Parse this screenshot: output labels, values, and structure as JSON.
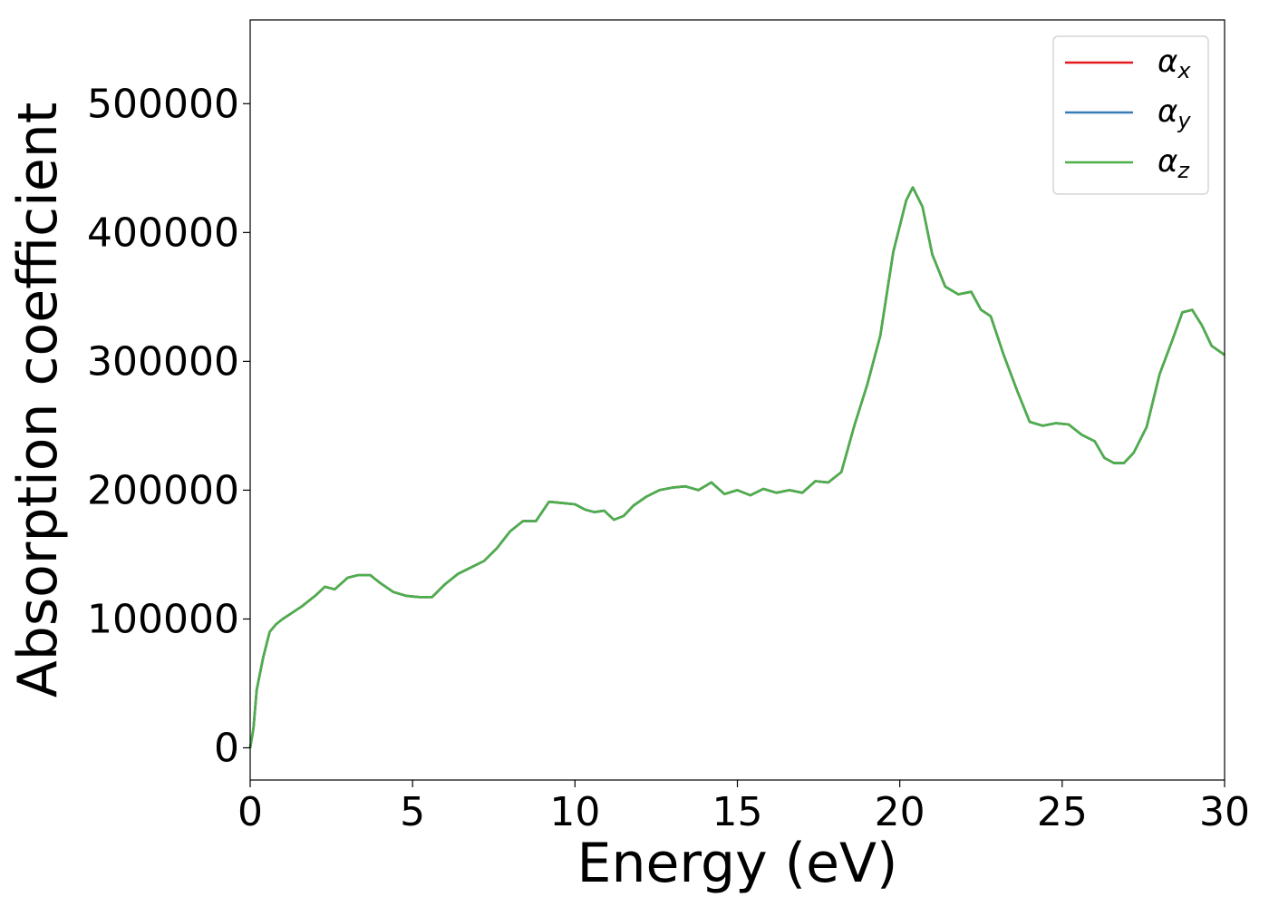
{
  "chart_data": {
    "type": "line",
    "title": "",
    "xlabel": "Energy (eV)",
    "ylabel": "Absorption coefficient",
    "xlim": [
      0,
      30
    ],
    "ylim": [
      -25000,
      565000
    ],
    "xticks": [
      0,
      5,
      10,
      15,
      20,
      25,
      30
    ],
    "xtick_labels": [
      "0",
      "5",
      "10",
      "15",
      "20",
      "25",
      "30"
    ],
    "yticks": [
      0,
      100000,
      200000,
      300000,
      400000,
      500000
    ],
    "ytick_labels": [
      "0",
      "100000",
      "200000",
      "300000",
      "400000",
      "500000"
    ],
    "grid": false,
    "legend_position": "top-right",
    "x": [
      0,
      0.1,
      0.2,
      0.4,
      0.6,
      0.8,
      1.0,
      1.3,
      1.6,
      2.0,
      2.3,
      2.6,
      3.0,
      3.3,
      3.7,
      4.0,
      4.4,
      4.8,
      5.2,
      5.6,
      6.0,
      6.4,
      6.8,
      7.2,
      7.6,
      8.0,
      8.4,
      8.8,
      9.2,
      9.6,
      10.0,
      10.3,
      10.6,
      10.9,
      11.2,
      11.5,
      11.8,
      12.2,
      12.6,
      13.0,
      13.4,
      13.8,
      14.2,
      14.6,
      15.0,
      15.4,
      15.8,
      16.2,
      16.6,
      17.0,
      17.4,
      17.8,
      18.2,
      18.6,
      19.0,
      19.4,
      19.8,
      20.2,
      20.4,
      20.7,
      21.0,
      21.4,
      21.8,
      22.2,
      22.5,
      22.8,
      23.2,
      23.6,
      24.0,
      24.4,
      24.8,
      25.2,
      25.6,
      26.0,
      26.3,
      26.6,
      26.9,
      27.2,
      27.6,
      28.0,
      28.4,
      28.7,
      29.0,
      29.3,
      29.6,
      30.0
    ],
    "series": [
      {
        "name": "α",
        "subscript": "x",
        "color": "#e41a1c",
        "values": [
          0,
          15000,
          45000,
          70000,
          90000,
          96000,
          100000,
          105000,
          110000,
          118000,
          125000,
          123000,
          132000,
          134000,
          134000,
          128000,
          121000,
          118000,
          117000,
          117000,
          127000,
          135000,
          140000,
          145000,
          155000,
          168000,
          176000,
          176000,
          191000,
          190000,
          189000,
          185000,
          183000,
          184000,
          177000,
          180000,
          188000,
          195000,
          200000,
          202000,
          203000,
          200000,
          206000,
          197000,
          200000,
          196000,
          201000,
          198000,
          200000,
          198000,
          207000,
          206000,
          214000,
          250000,
          282000,
          320000,
          385000,
          425000,
          435000,
          420000,
          383000,
          358000,
          352000,
          354000,
          340000,
          335000,
          305000,
          278000,
          253000,
          250000,
          252000,
          251000,
          243000,
          238000,
          225000,
          221000,
          221000,
          229000,
          249000,
          290000,
          317000,
          338000,
          340000,
          328000,
          312000,
          305000
        ]
      },
      {
        "name": "α",
        "subscript": "y",
        "color": "#377eb8",
        "values": [
          0,
          15000,
          45000,
          70000,
          90000,
          96000,
          100000,
          105000,
          110000,
          118000,
          125000,
          123000,
          132000,
          134000,
          134000,
          128000,
          121000,
          118000,
          117000,
          117000,
          127000,
          135000,
          140000,
          145000,
          155000,
          168000,
          176000,
          176000,
          191000,
          190000,
          189000,
          185000,
          183000,
          184000,
          177000,
          180000,
          188000,
          195000,
          200000,
          202000,
          203000,
          200000,
          206000,
          197000,
          200000,
          196000,
          201000,
          198000,
          200000,
          198000,
          207000,
          206000,
          214000,
          250000,
          282000,
          320000,
          385000,
          425000,
          435000,
          420000,
          383000,
          358000,
          352000,
          354000,
          340000,
          335000,
          305000,
          278000,
          253000,
          250000,
          252000,
          251000,
          243000,
          238000,
          225000,
          221000,
          221000,
          229000,
          249000,
          290000,
          317000,
          338000,
          340000,
          328000,
          312000,
          305000
        ]
      },
      {
        "name": "α",
        "subscript": "z",
        "color": "#4daf4a",
        "values": [
          0,
          15000,
          45000,
          70000,
          90000,
          96000,
          100000,
          105000,
          110000,
          118000,
          125000,
          123000,
          132000,
          134000,
          134000,
          128000,
          121000,
          118000,
          117000,
          117000,
          127000,
          135000,
          140000,
          145000,
          155000,
          168000,
          176000,
          176000,
          191000,
          190000,
          189000,
          185000,
          183000,
          184000,
          177000,
          180000,
          188000,
          195000,
          200000,
          202000,
          203000,
          200000,
          206000,
          197000,
          200000,
          196000,
          201000,
          198000,
          200000,
          198000,
          207000,
          206000,
          214000,
          250000,
          282000,
          320000,
          385000,
          425000,
          435000,
          420000,
          383000,
          358000,
          352000,
          354000,
          340000,
          335000,
          305000,
          278000,
          253000,
          250000,
          252000,
          251000,
          243000,
          238000,
          225000,
          221000,
          221000,
          229000,
          249000,
          290000,
          317000,
          338000,
          340000,
          328000,
          312000,
          305000
        ]
      }
    ]
  }
}
